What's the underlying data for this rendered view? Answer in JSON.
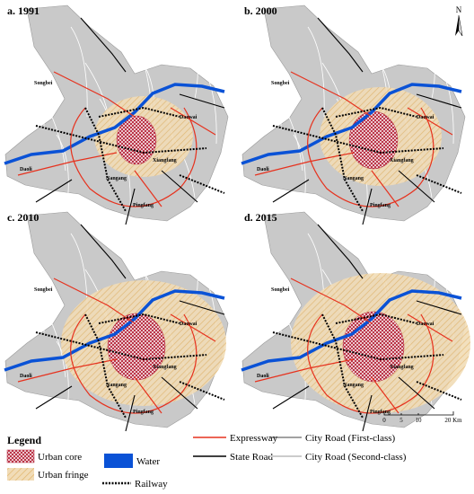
{
  "panels": [
    {
      "title": "a. 1991",
      "places": [
        "Songbei",
        "Daowai",
        "Daoli",
        "Nangang",
        "Xiangfang",
        "Pingfang"
      ]
    },
    {
      "title": "b. 2000",
      "places": [
        "Songbei",
        "Daowai",
        "Daoli",
        "Nangang",
        "Xiangfang",
        "Pingfang"
      ]
    },
    {
      "title": "c. 2010",
      "places": [
        "Songbei",
        "Daowai",
        "Daoli",
        "Nangang",
        "Xiangfang",
        "Pingfang"
      ]
    },
    {
      "title": "d. 2015",
      "places": [
        "Songbei",
        "Daowai",
        "Daoli",
        "Nangang",
        "Xiangfang",
        "Pingfang"
      ]
    }
  ],
  "north": "N",
  "legend": {
    "title": "Legend",
    "items": [
      "Urban core",
      "Urban fringe",
      "Water",
      "Railway",
      "Expressway",
      "State Road",
      "City Road (First-class)",
      "City Road (Second-class)"
    ]
  },
  "scale": {
    "ticks": [
      "0",
      "5",
      "10",
      "20 Km"
    ]
  }
}
